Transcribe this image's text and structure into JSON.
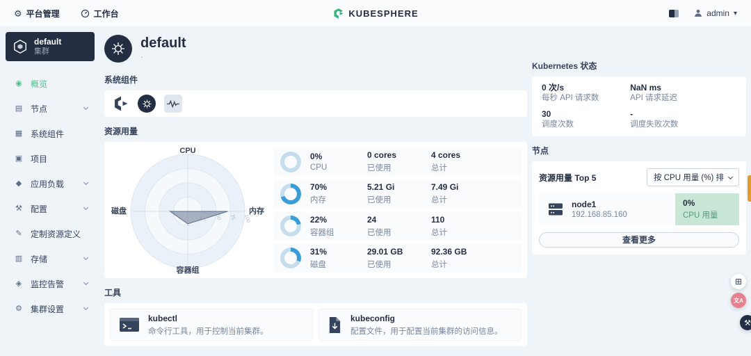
{
  "topbar": {
    "platform_label": "平台管理",
    "workbench_label": "工作台",
    "logo_text": "KUBESPHERE",
    "user_name": "admin"
  },
  "icons": {
    "gear": "⚙",
    "apps": "⊞",
    "translate": "文A",
    "hammer": "⚒",
    "caret_down": "▾",
    "menu": {
      "overview": "◉",
      "nodes": "▤",
      "components": "▦",
      "projects": "▣",
      "workloads": "◆",
      "config": "⚒",
      "crd": "✎",
      "storage": "▥",
      "monitoring": "◈",
      "settings": "⚙"
    }
  },
  "sidebar": {
    "cluster_name": "default",
    "cluster_type": "集群",
    "items": [
      {
        "label": "概览"
      },
      {
        "label": "节点"
      },
      {
        "label": "系统组件"
      },
      {
        "label": "项目"
      },
      {
        "label": "应用负载"
      },
      {
        "label": "配置"
      },
      {
        "label": "定制资源定义"
      },
      {
        "label": "存储"
      },
      {
        "label": "监控告警"
      },
      {
        "label": "集群设置"
      }
    ]
  },
  "main": {
    "title": "default",
    "subtitle": ".",
    "components_title": "系统组件",
    "resources_title": "资源用量",
    "labels": {
      "used": "已使用",
      "total": "总计"
    },
    "resources": [
      {
        "percent": "0%",
        "name": "CPU",
        "used": "0 cores",
        "total": "4 cores",
        "value": 0
      },
      {
        "percent": "70%",
        "name": "内存",
        "used": "5.21 Gi",
        "total": "7.49 Gi",
        "value": 70
      },
      {
        "percent": "22%",
        "name": "容器组",
        "used": "24",
        "total": "110",
        "value": 22
      },
      {
        "percent": "31%",
        "name": "磁盘",
        "used": "29.01 GB",
        "total": "92.36 GB",
        "value": 31
      }
    ],
    "tools_title": "工具",
    "tools": [
      {
        "name": "kubectl",
        "desc": "命令行工具，用于控制当前集群。"
      },
      {
        "name": "kubeconfig",
        "desc": "配置文件，用于配置当前集群的访问信息。"
      }
    ]
  },
  "right": {
    "k8s_title": "Kubernetes 状态",
    "k8s_stats": [
      {
        "value": "0 次/s",
        "label": "每秒 API 请求数"
      },
      {
        "value": "NaN ms",
        "label": "API 请求延迟"
      },
      {
        "value": "30",
        "label": "调度次数"
      },
      {
        "value": "-",
        "label": "调度失败次数"
      }
    ],
    "nodes_title": "节点",
    "top_label": "资源用量 Top 5",
    "sort_label": "按 CPU 用量 (%) 排",
    "node": {
      "name": "node1",
      "ip": "192.168.85.160",
      "usage": "0%",
      "usage_label": "CPU 用量"
    },
    "view_more": "查看更多"
  },
  "chart_data": {
    "type": "radar",
    "title": "资源用量",
    "categories": [
      "CPU",
      "内存",
      "容器组",
      "磁盘"
    ],
    "values": [
      0,
      70,
      22,
      31
    ],
    "max": 100,
    "ticks": [
      0,
      25,
      50,
      75,
      100
    ],
    "fill": "rgba(104,117,140,0.55)",
    "stroke": "#5a6d91"
  },
  "colors": {
    "accent_green": "#55bc8a",
    "dark": "#242e42",
    "donut_fill": "#3a9dd5",
    "donut_track": "#c6ddee",
    "usage_box_bg": "#c9e7d7"
  }
}
